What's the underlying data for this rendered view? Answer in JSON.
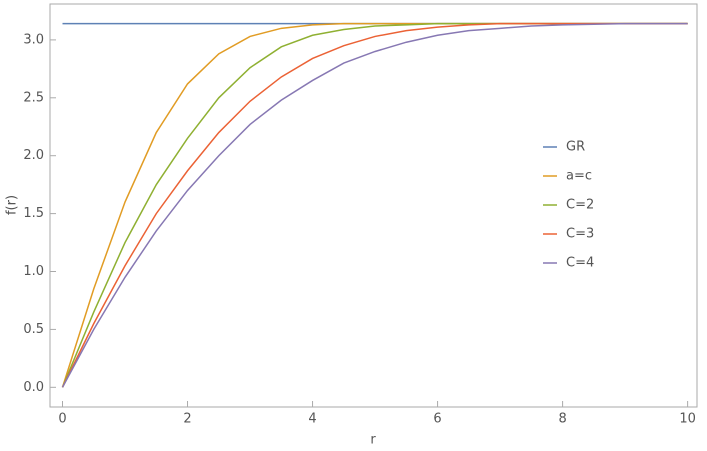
{
  "chart_data": {
    "type": "line",
    "x_label": "r",
    "y_label": "f(r)",
    "x": [
      0,
      0.5,
      1,
      1.5,
      2,
      2.5,
      3,
      3.5,
      4,
      4.5,
      5,
      5.5,
      6,
      6.5,
      7,
      7.5,
      8,
      8.5,
      9,
      9.5,
      10
    ],
    "series": [
      {
        "name": "GR",
        "color": "#5e81b5",
        "values": [
          3.14,
          3.14,
          3.14,
          3.14,
          3.14,
          3.14,
          3.14,
          3.14,
          3.14,
          3.14,
          3.14,
          3.14,
          3.14,
          3.14,
          3.14,
          3.14,
          3.14,
          3.14,
          3.14,
          3.14,
          3.14
        ]
      },
      {
        "name": "a=c",
        "color": "#e19c24",
        "values": [
          0,
          0.85,
          1.6,
          2.2,
          2.62,
          2.88,
          3.03,
          3.1,
          3.13,
          3.14,
          3.14,
          3.14,
          3.14,
          3.14,
          3.14,
          3.14,
          3.14,
          3.14,
          3.14,
          3.14,
          3.14
        ]
      },
      {
        "name": "C=2",
        "color": "#8fb032",
        "values": [
          0,
          0.65,
          1.25,
          1.75,
          2.15,
          2.5,
          2.76,
          2.94,
          3.04,
          3.09,
          3.12,
          3.13,
          3.14,
          3.14,
          3.14,
          3.14,
          3.14,
          3.14,
          3.14,
          3.14,
          3.14
        ]
      },
      {
        "name": "C=3",
        "color": "#eb6235",
        "values": [
          0,
          0.55,
          1.05,
          1.5,
          1.87,
          2.2,
          2.47,
          2.68,
          2.84,
          2.95,
          3.03,
          3.08,
          3.11,
          3.13,
          3.14,
          3.14,
          3.14,
          3.14,
          3.14,
          3.14,
          3.14
        ]
      },
      {
        "name": "C=4",
        "color": "#8778b3",
        "values": [
          0,
          0.5,
          0.95,
          1.35,
          1.7,
          2.0,
          2.27,
          2.48,
          2.65,
          2.8,
          2.9,
          2.98,
          3.04,
          3.08,
          3.1,
          3.12,
          3.13,
          3.135,
          3.14,
          3.14,
          3.14
        ]
      }
    ],
    "xlim": [
      -0.2,
      10.15
    ],
    "ylim": [
      -0.17,
      3.31
    ],
    "xticks": [
      0,
      2,
      4,
      6,
      8,
      10
    ],
    "yticks": [
      {
        "value": 0,
        "label": "0.0"
      },
      0.5,
      {
        "value": 1,
        "label": "1.0"
      },
      1.5,
      {
        "value": 2,
        "label": "2.0"
      },
      2.5,
      {
        "value": 3,
        "label": "3.0"
      }
    ],
    "legend": "right"
  }
}
